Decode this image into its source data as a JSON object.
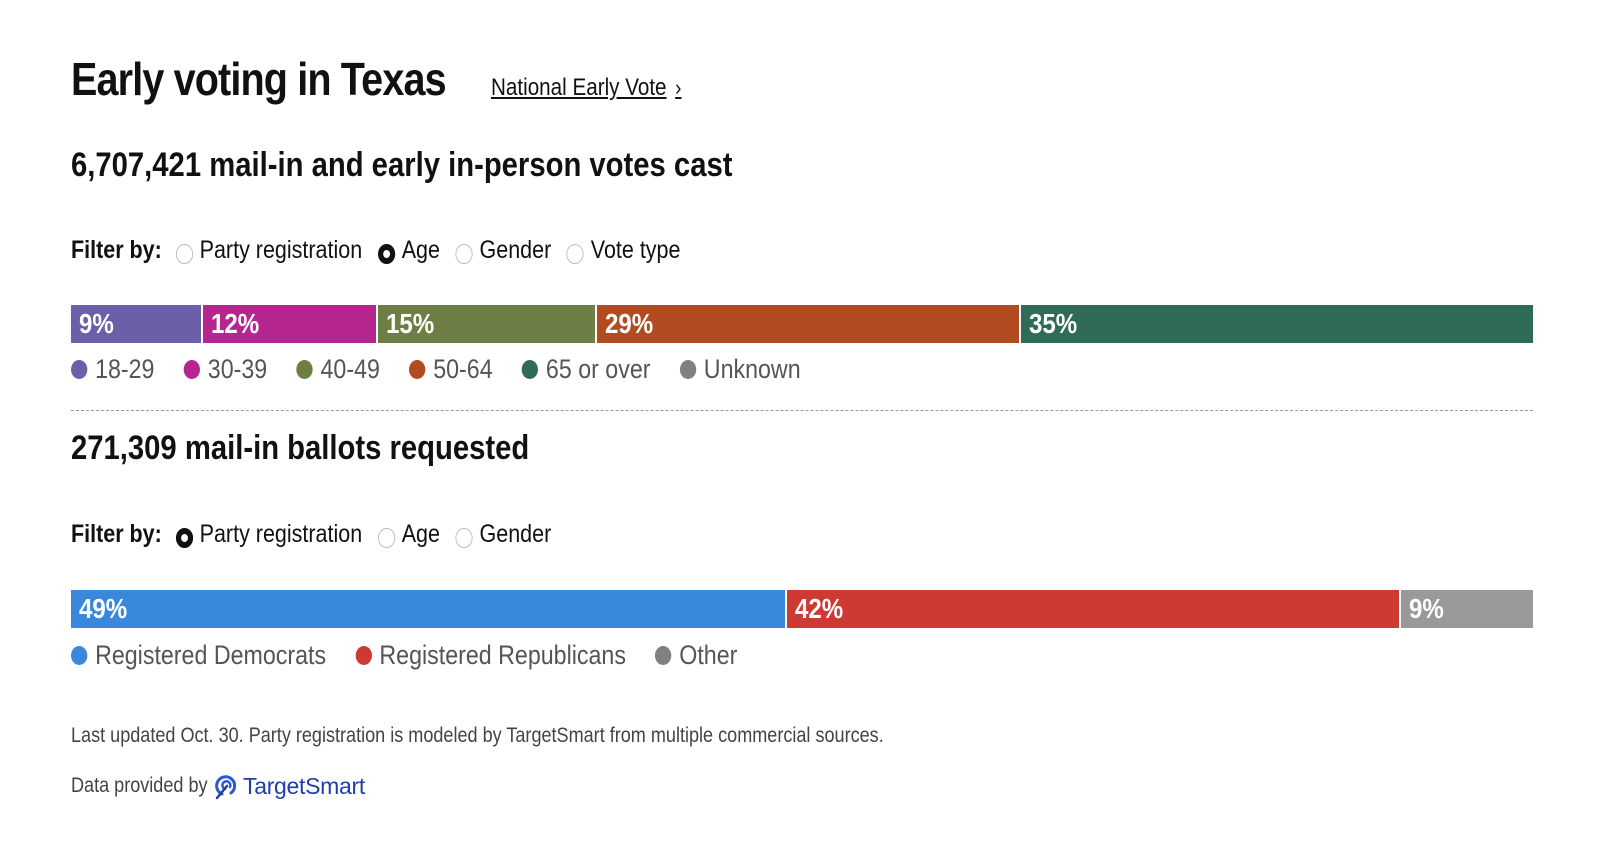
{
  "header": {
    "title": "Early voting in Texas",
    "national_link": "National Early Vote",
    "chevron_glyph": "›"
  },
  "section1": {
    "count": "6,707,421",
    "headline_text": "mail-in and early in-person votes cast",
    "filter_label": "Filter by:",
    "filters": [
      {
        "label": "Party registration",
        "selected": false
      },
      {
        "label": "Age",
        "selected": true
      },
      {
        "label": "Gender",
        "selected": false
      },
      {
        "label": "Vote type",
        "selected": false
      }
    ],
    "legend": [
      {
        "label": "18-29",
        "color": "#6a5fa8"
      },
      {
        "label": "30-39",
        "color": "#b5268f"
      },
      {
        "label": "40-49",
        "color": "#6d7f44"
      },
      {
        "label": "50-64",
        "color": "#b24c20"
      },
      {
        "label": "65 or over",
        "color": "#2f6b56"
      },
      {
        "label": "Unknown",
        "color": "#808080"
      }
    ]
  },
  "section2": {
    "count": "271,309",
    "headline_text": "mail-in ballots requested",
    "filter_label": "Filter by:",
    "filters": [
      {
        "label": "Party registration",
        "selected": true
      },
      {
        "label": "Age",
        "selected": false
      },
      {
        "label": "Gender",
        "selected": false
      }
    ],
    "legend": [
      {
        "label": "Registered Democrats",
        "color": "#3a87de"
      },
      {
        "label": "Registered Republicans",
        "color": "#cc3a33"
      },
      {
        "label": "Other",
        "color": "#808080"
      }
    ]
  },
  "footer": {
    "note": "Last updated Oct. 30. Party registration is modeled by TargetSmart from multiple commercial sources.",
    "provided_by": "Data provided by",
    "logo_text": "TargetSmart"
  },
  "chart_data": [
    {
      "type": "bar",
      "stacked": true,
      "orientation": "horizontal",
      "categories": [
        "18-29",
        "30-39",
        "40-49",
        "50-64",
        "65 or over",
        "Unknown"
      ],
      "values": [
        9,
        12,
        15,
        29,
        35,
        0
      ],
      "labels": [
        "9%",
        "12%",
        "15%",
        "29%",
        "35%",
        ""
      ],
      "colors": [
        "#6a5fa8",
        "#b5268f",
        "#6d7f44",
        "#b24c20",
        "#2f6b56",
        "#808080"
      ],
      "unit": "%"
    },
    {
      "type": "bar",
      "stacked": true,
      "orientation": "horizontal",
      "categories": [
        "Registered Democrats",
        "Registered Republicans",
        "Other"
      ],
      "values": [
        49,
        42,
        9
      ],
      "labels": [
        "49%",
        "42%",
        "9%"
      ],
      "colors": [
        "#3a87de",
        "#cc3a33",
        "#999999"
      ],
      "unit": "%"
    }
  ]
}
